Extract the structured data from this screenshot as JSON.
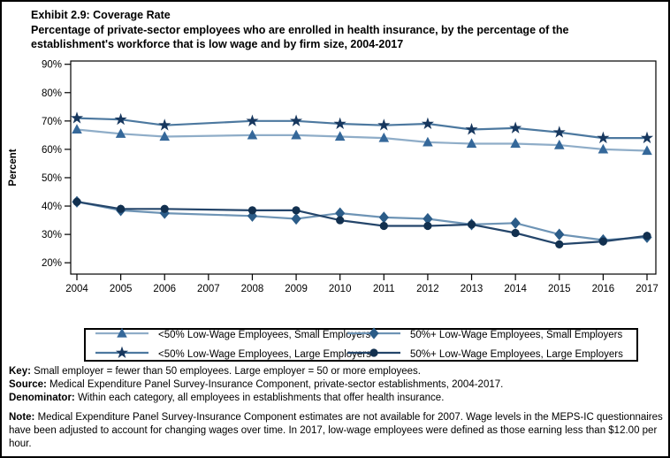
{
  "chart_data": {
    "type": "line",
    "title": "Exhibit 2.9: Coverage Rate",
    "subtitle": "Percentage of private-sector employees who are enrolled in health insurance, by the percentage of the establishment's workforce that is low wage and by firm size, 2004-2017",
    "x": [
      "2004",
      "2005",
      "2006",
      "2007",
      "2008",
      "2009",
      "2010",
      "2011",
      "2012",
      "2013",
      "2014",
      "2015",
      "2016",
      "2017"
    ],
    "ylabel": "Percent",
    "ylim": [
      20,
      90
    ],
    "ytick_labels": [
      "90%",
      "80%",
      "70%",
      "60%",
      "50%",
      "40%",
      "30%",
      "20%"
    ],
    "grid": false,
    "legend_position": "bottom",
    "note_gap_year": "2007",
    "series": [
      {
        "name": "<50% Low-Wage Employees, Small Employers",
        "marker": "triangle",
        "marker_color": "#35689A",
        "line_color": "#8FADC8",
        "values": [
          67,
          65.5,
          64.5,
          null,
          65,
          65,
          64.5,
          64,
          62.5,
          62,
          62,
          61.5,
          60,
          59.5
        ]
      },
      {
        "name": "<50% Low-Wage Employees, Large Employers",
        "marker": "star",
        "marker_color": "#17375E",
        "line_color": "#4C789F",
        "values": [
          71,
          70.5,
          68.5,
          null,
          70,
          70,
          69,
          68.5,
          69,
          67,
          67.5,
          66,
          64,
          64
        ]
      },
      {
        "name": "50%+ Low-Wage Employees, Small Employers",
        "marker": "diamond",
        "marker_color": "#2B5C88",
        "line_color": "#6E94B5",
        "values": [
          41.5,
          38.5,
          37.5,
          null,
          36.5,
          35.5,
          37.5,
          36,
          35.5,
          33.5,
          34,
          30,
          28,
          29
        ]
      },
      {
        "name": "50%+ Low-Wage Employees, Large Employers",
        "marker": "circle",
        "marker_color": "#12304F",
        "line_color": "#24456A",
        "values": [
          41.5,
          39,
          39,
          null,
          38.5,
          38.5,
          35,
          33,
          33,
          33.5,
          30.5,
          26.5,
          27.5,
          29.5
        ]
      }
    ]
  },
  "footnotes": [
    {
      "label": "Key:",
      "text": " Small employer = fewer than 50 employees. Large employer = 50 or more employees."
    },
    {
      "label": "Source:",
      "text": " Medical Expenditure Panel Survey-Insurance Component, private-sector establishments, 2004-2017."
    },
    {
      "label": "Denominator:",
      "text": " Within each category, all employees in establishments that offer health insurance."
    },
    {
      "label": "Note:",
      "text": " Medical Expenditure Panel Survey-Insurance Component estimates are not available for 2007. Wage levels in the MEPS-IC questionnaires have been adjusted to account for changing wages over time. In 2017, low-wage employees were defined as those earning less than $12.00 per hour."
    }
  ]
}
